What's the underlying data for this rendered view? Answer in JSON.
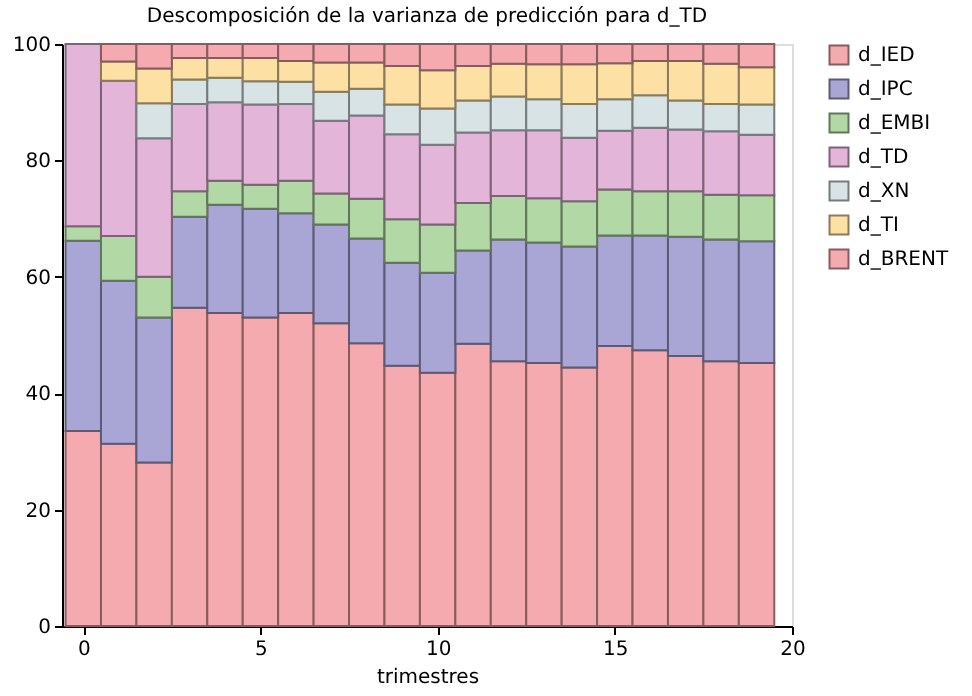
{
  "chart_data": {
    "type": "bar",
    "stacked": true,
    "title": "Descomposición de la varianza de predicción para d_TD",
    "xlabel": "trimestres",
    "x": [
      0,
      1,
      2,
      3,
      4,
      5,
      6,
      7,
      8,
      9,
      10,
      11,
      12,
      13,
      14,
      15,
      16,
      17,
      18,
      19
    ],
    "xlim": [
      -0.6,
      20
    ],
    "xticks": [
      0,
      5,
      10,
      15,
      20
    ],
    "ylim": [
      0,
      100
    ],
    "yticks": [
      0,
      20,
      40,
      60,
      80,
      100
    ],
    "grid": false,
    "legend": "top right",
    "series": [
      {
        "name": "d_IED",
        "color": "#f4aaae",
        "values": [
          33.5,
          31.3,
          28.1,
          54.7,
          53.8,
          53.0,
          53.8,
          52.0,
          48.6,
          44.7,
          43.5,
          48.5,
          45.5,
          45.2,
          44.4,
          48.1,
          47.4,
          46.4,
          45.5,
          45.2
        ]
      },
      {
        "name": "d_IPC",
        "color": "#a9a6d6",
        "values": [
          32.7,
          28.0,
          24.9,
          15.6,
          18.6,
          18.7,
          17.1,
          17.0,
          18.0,
          17.7,
          17.2,
          16.0,
          20.9,
          20.7,
          20.8,
          19.0,
          19.7,
          20.5,
          20.9,
          20.9
        ]
      },
      {
        "name": "d_EMBI",
        "color": "#b2d8a5",
        "values": [
          2.5,
          7.7,
          7.0,
          4.4,
          4.1,
          4.1,
          5.6,
          5.3,
          6.8,
          7.5,
          8.3,
          8.2,
          7.5,
          7.6,
          7.8,
          7.9,
          7.6,
          7.8,
          7.7,
          7.9
        ]
      },
      {
        "name": "d_TD",
        "color": "#e2b5d9",
        "values": [
          31.3,
          26.7,
          23.8,
          15.0,
          13.5,
          13.8,
          13.2,
          12.5,
          14.3,
          14.6,
          13.7,
          12.1,
          11.3,
          11.7,
          10.9,
          10.1,
          10.9,
          10.6,
          10.9,
          10.4
        ]
      },
      {
        "name": "d_XN",
        "color": "#d8e3e6",
        "values": [
          0,
          0,
          6.0,
          4.2,
          4.2,
          4.0,
          3.8,
          5.0,
          4.6,
          5.1,
          6.2,
          5.5,
          5.8,
          5.3,
          5.8,
          5.4,
          5.6,
          5.0,
          4.7,
          5.2
        ]
      },
      {
        "name": "d_TI",
        "color": "#fde0a4",
        "values": [
          0,
          3.3,
          6.0,
          3.7,
          3.4,
          4.0,
          3.6,
          5.0,
          4.5,
          6.6,
          6.6,
          5.9,
          5.6,
          6.0,
          6.8,
          6.2,
          5.9,
          6.8,
          6.9,
          6.4
        ]
      },
      {
        "name": "d_BRENT",
        "color": "#f4aaae",
        "values": [
          0,
          3.0,
          4.2,
          2.4,
          2.4,
          2.4,
          2.9,
          3.2,
          3.2,
          3.8,
          4.5,
          3.8,
          3.4,
          3.5,
          3.5,
          3.3,
          2.9,
          2.9,
          3.4,
          4.0
        ]
      }
    ]
  }
}
